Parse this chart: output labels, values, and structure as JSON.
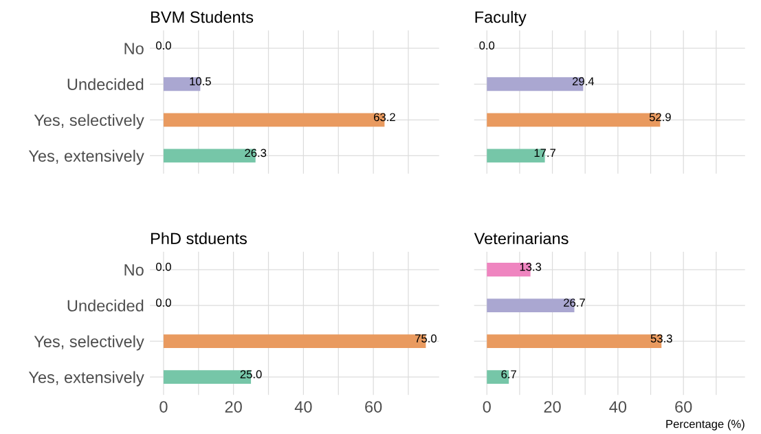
{
  "chart_data": [
    {
      "type": "bar",
      "orientation": "horizontal",
      "title": "BVM Students",
      "categories": [
        "No",
        "Undecided",
        "Yes, selectively",
        "Yes, extensively"
      ],
      "values": [
        0.0,
        10.5,
        63.2,
        26.3
      ],
      "colors": [
        "#ef85c0",
        "#aaa7d1",
        "#e99a5f",
        "#76c6a8"
      ],
      "value_labels": [
        "0.0",
        "10.5",
        "63.2",
        "26.3"
      ],
      "xlim": [
        -3.9,
        78.8
      ],
      "xticks": [
        0,
        {
          "value": 10,
          "label": null
        },
        20,
        {
          "value": 30,
          "label": null
        },
        40,
        {
          "value": 50,
          "label": null
        },
        60,
        {
          "value": 70,
          "label": null
        }
      ],
      "grid": true,
      "tick_labels": "y"
    },
    {
      "type": "bar",
      "orientation": "horizontal",
      "title": "Faculty",
      "categories": [
        null,
        null,
        null,
        null
      ],
      "values": [
        0.0,
        29.4,
        52.9,
        17.7
      ],
      "colors": [
        "#ef85c0",
        "#aaa7d1",
        "#e99a5f",
        "#76c6a8"
      ],
      "value_labels": [
        "0.0",
        "29.4",
        "52.9",
        "17.7"
      ],
      "xlim": [
        -3.9,
        78.8
      ],
      "xticks": [
        0,
        {
          "value": 10,
          "label": null
        },
        20,
        {
          "value": 30,
          "label": null
        },
        40,
        {
          "value": 50,
          "label": null
        },
        60,
        {
          "value": 70,
          "label": null
        }
      ],
      "grid": true,
      "tick_labels": false
    },
    {
      "type": "bar",
      "orientation": "horizontal",
      "title": "PhD stduents",
      "categories": [
        "No",
        "Undecided",
        "Yes, selectively",
        "Yes, extensively"
      ],
      "values": [
        0.0,
        0.0,
        75.0,
        25.0
      ],
      "colors": [
        "#ef85c0",
        "#aaa7d1",
        "#e99a5f",
        "#76c6a8"
      ],
      "value_labels": [
        "0.0",
        "0.0",
        "75.0",
        "25.0"
      ],
      "xlim": [
        -3.9,
        78.8
      ],
      "xticks": [
        0,
        {
          "value": 10,
          "label": null
        },
        20,
        {
          "value": 30,
          "label": null
        },
        40,
        {
          "value": 50,
          "label": null
        },
        60,
        {
          "value": 70,
          "label": null
        }
      ],
      "grid": true
    },
    {
      "type": "bar",
      "orientation": "horizontal",
      "title": "Veterinarians",
      "xlabel": "Percentage (%)",
      "categories": [
        null,
        null,
        null,
        null
      ],
      "values": [
        13.3,
        26.7,
        53.3,
        6.7
      ],
      "colors": [
        "#ef85c0",
        "#aaa7d1",
        "#e99a5f",
        "#76c6a8"
      ],
      "value_labels": [
        "13.3",
        "26.7",
        "53.3",
        "6.7"
      ],
      "xlim": [
        -3.9,
        78.8
      ],
      "xticks": [
        0,
        {
          "value": 10,
          "label": null
        },
        20,
        {
          "value": 30,
          "label": null
        },
        40,
        {
          "value": 50,
          "label": null
        },
        60,
        {
          "value": 70,
          "label": null
        }
      ],
      "grid": true,
      "tick_labels": "x"
    }
  ]
}
